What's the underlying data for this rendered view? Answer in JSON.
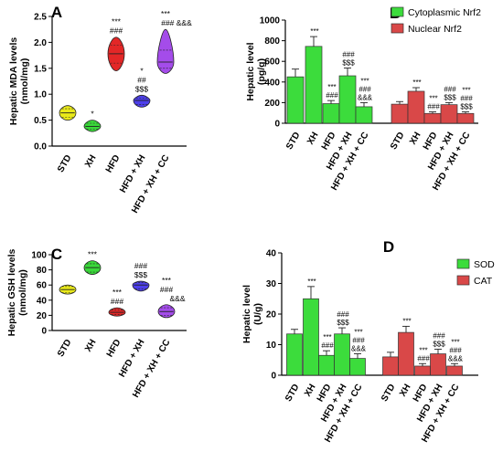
{
  "colors": {
    "std": "#e8e800",
    "xh": "#25d425",
    "hfd": "#e01010",
    "hfdxh": "#3a2ae8",
    "hfdxhcc": "#9a39e8",
    "bar_green": "#3cdc3c",
    "bar_red": "#d94848",
    "sig_red": "#cc2e2e",
    "sig_blue": "#2550d8",
    "sig_green": "#2a9c38"
  },
  "chart_data": [
    {
      "id": "A",
      "panel_letter": "A",
      "type": "violin",
      "ylabel": "Hepatic MDA levels (nmol/mg)",
      "ylim": [
        0,
        2.5
      ],
      "yticks": [
        "0.0",
        "0.5",
        "1.0",
        "1.5",
        "2.0",
        "2.5"
      ],
      "categories": [
        "STD",
        "XH",
        "HFD",
        "HFD + XH",
        "HFD + XH + CC"
      ],
      "groups": [
        {
          "name": "STD",
          "min": 0.5,
          "q1": 0.55,
          "median": 0.64,
          "q3": 0.72,
          "max": 0.78,
          "color_key": "std",
          "sig": []
        },
        {
          "name": "XH",
          "min": 0.28,
          "q1": 0.33,
          "median": 0.38,
          "q3": 0.44,
          "max": 0.5,
          "color_key": "xh",
          "sig": [
            {
              "text": "*",
              "color_key": "sig_red"
            }
          ]
        },
        {
          "name": "HFD",
          "min": 1.45,
          "q1": 1.6,
          "median": 1.78,
          "q3": 1.95,
          "max": 2.1,
          "color_key": "hfd",
          "sig": [
            {
              "text": "***",
              "color_key": "sig_red"
            },
            {
              "text": "###",
              "color_key": "sig_blue"
            }
          ]
        },
        {
          "name": "HFD + XH",
          "min": 0.75,
          "q1": 0.8,
          "median": 0.88,
          "q3": 0.92,
          "max": 0.98,
          "color_key": "hfdxh",
          "sig": [
            {
              "text": "*",
              "color_key": "sig_red"
            },
            {
              "text": "##",
              "color_key": "sig_blue"
            },
            {
              "text": "$$$",
              "color_key": "sig_green"
            }
          ]
        },
        {
          "name": "HFD + XH + CC",
          "min": 1.4,
          "q1": 1.5,
          "median": 1.62,
          "q3": 1.85,
          "max": 2.25,
          "color_key": "hfdxhcc",
          "sig": [
            {
              "text": "***",
              "color_key": "sig_red"
            },
            {
              "text": "### &&&",
              "color_key": "sig_blue"
            }
          ]
        }
      ]
    },
    {
      "id": "B",
      "panel_letter": "B",
      "type": "bar",
      "ylabel": "Hepatic level (pg/g)",
      "ylim": [
        0,
        1000
      ],
      "yticks": [
        "0",
        "200",
        "400",
        "600",
        "800",
        "1000"
      ],
      "categories": [
        "STD",
        "XH",
        "HFD",
        "HFD + XH",
        "HFD + XH + CC"
      ],
      "series": [
        {
          "name": "Cytoplasmic Nrf2",
          "values": [
            450,
            745,
            190,
            460,
            160
          ],
          "errors": [
            75,
            95,
            30,
            75,
            40
          ],
          "color_key": "bar_green",
          "sig": [
            [],
            [
              "***"
            ],
            [
              "***",
              "###"
            ],
            [
              "###",
              "$$$"
            ],
            [
              "***",
              "###",
              "&&&"
            ]
          ]
        },
        {
          "name": "Nuclear Nrf2",
          "values": [
            185,
            310,
            95,
            180,
            95
          ],
          "errors": [
            25,
            35,
            15,
            20,
            15
          ],
          "color_key": "bar_red",
          "sig": [
            [],
            [
              "***"
            ],
            [
              "***",
              "###"
            ],
            [
              "###",
              "$$$"
            ],
            [
              "***",
              "###",
              "$$$"
            ]
          ]
        }
      ],
      "legend_position": "top-right"
    },
    {
      "id": "C",
      "panel_letter": "C",
      "type": "violin",
      "ylabel": "Hepatic GSH levels (nmol/mg)",
      "ylim": [
        0,
        100
      ],
      "yticks": [
        "0",
        "20",
        "40",
        "60",
        "80",
        "100"
      ],
      "categories": [
        "STD",
        "XH",
        "HFD",
        "HFD + XH",
        "HFD + XH + CC"
      ],
      "groups": [
        {
          "name": "STD",
          "min": 48,
          "q1": 50,
          "median": 54,
          "q3": 58,
          "max": 60,
          "color_key": "std",
          "sig": []
        },
        {
          "name": "XH",
          "min": 74,
          "q1": 77,
          "median": 83,
          "q3": 88,
          "max": 92,
          "color_key": "xh",
          "sig": [
            {
              "text": "***",
              "color_key": "sig_red"
            }
          ]
        },
        {
          "name": "HFD",
          "min": 19,
          "q1": 21,
          "median": 24,
          "q3": 27,
          "max": 30,
          "color_key": "hfd",
          "sig": [
            {
              "text": "***",
              "color_key": "sig_red"
            },
            {
              "text": "###",
              "color_key": "sig_blue"
            }
          ]
        },
        {
          "name": "HFD + XH",
          "min": 52,
          "q1": 55,
          "median": 60,
          "q3": 63,
          "max": 65,
          "color_key": "hfdxh",
          "sig": [
            {
              "text": "###",
              "color_key": "sig_blue"
            },
            {
              "text": "$$$",
              "color_key": "sig_green"
            }
          ]
        },
        {
          "name": "HFD + XH + CC",
          "min": 17,
          "q1": 20,
          "median": 25,
          "q3": 30,
          "max": 34,
          "color_key": "hfdxhcc",
          "sig": [
            {
              "text": "***",
              "color_key": "sig_red"
            },
            {
              "text": "###",
              "color_key": "sig_blue"
            },
            {
              "text": "&&&",
              "color_key": "sig_green"
            }
          ]
        }
      ]
    },
    {
      "id": "D",
      "panel_letter": "D",
      "type": "bar",
      "ylabel": "Hepatic level (U/g)",
      "ylim": [
        0,
        40
      ],
      "yticks": [
        "0",
        "10",
        "20",
        "30",
        "40"
      ],
      "categories": [
        "STD",
        "XH",
        "HFD",
        "HFD + XH",
        "HFD + XH + CC"
      ],
      "series": [
        {
          "name": "SOD",
          "values": [
            13.5,
            25,
            6.5,
            13.5,
            5.5
          ],
          "errors": [
            1.5,
            4,
            1.5,
            2,
            1.5
          ],
          "color_key": "bar_green",
          "sig": [
            [],
            [
              "***"
            ],
            [
              "***",
              "###"
            ],
            [
              "###",
              "$$$"
            ],
            [
              "***",
              "###",
              "&&&"
            ]
          ]
        },
        {
          "name": "CAT",
          "values": [
            6,
            14,
            3,
            7,
            3
          ],
          "errors": [
            1.5,
            2,
            0.8,
            1.5,
            0.8
          ],
          "color_key": "bar_red",
          "sig": [
            [],
            [
              "***"
            ],
            [
              "***",
              "###"
            ],
            [
              "###",
              "$$$"
            ],
            [
              "***",
              "###",
              "&&&"
            ]
          ]
        }
      ],
      "legend_position": "top-right"
    }
  ]
}
